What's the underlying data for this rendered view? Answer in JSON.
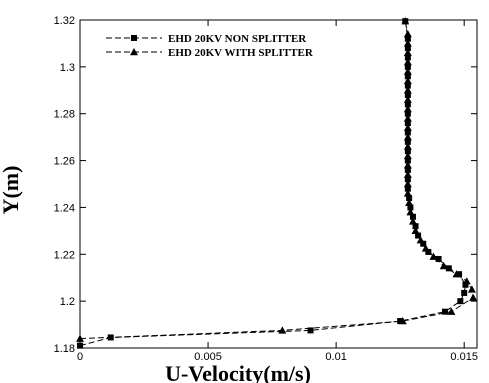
{
  "chart_data": {
    "type": "line",
    "title": "",
    "xlabel": "U-Velocity(m/s)",
    "ylabel": "Y(m)",
    "xlim": [
      0,
      0.0155
    ],
    "ylim": [
      1.18,
      1.32
    ],
    "xticks": [
      0,
      0.005,
      0.01,
      0.015
    ],
    "xtick_labels": [
      "0",
      "0.005",
      "0.01",
      "0.015"
    ],
    "yticks": [
      1.18,
      1.2,
      1.22,
      1.24,
      1.26,
      1.28,
      1.3,
      1.32
    ],
    "ytick_labels": [
      "1.18",
      "1.2",
      "1.22",
      "1.24",
      "1.26",
      "1.28",
      "1.3",
      "1.32"
    ],
    "grid": false,
    "legend_position": "top-left",
    "series": [
      {
        "name": "EHD 20KV NON SPLITTER",
        "marker": "square",
        "line_style": "dashed",
        "color": "#000000",
        "x": [
          0,
          0.0012,
          0.009,
          0.0125,
          0.01425,
          0.01485,
          0.015,
          0.01505,
          0.0148,
          0.0144,
          0.014,
          0.0136,
          0.0134,
          0.0132,
          0.0131,
          0.013,
          0.0129,
          0.01285,
          0.0128,
          0.0128,
          0.0128,
          0.0128,
          0.0128,
          0.0128,
          0.0128,
          0.0128,
          0.0128,
          0.0128,
          0.0128,
          0.0128,
          0.0128,
          0.0128,
          0.0128,
          0.0128,
          0.0128,
          0.0127
        ],
        "y": [
          1.181,
          1.1845,
          1.1875,
          1.1915,
          1.1955,
          1.2,
          1.2035,
          1.207,
          1.2115,
          1.214,
          1.218,
          1.221,
          1.2245,
          1.228,
          1.232,
          1.236,
          1.24,
          1.244,
          1.248,
          1.252,
          1.256,
          1.26,
          1.264,
          1.268,
          1.272,
          1.276,
          1.28,
          1.284,
          1.288,
          1.292,
          1.296,
          1.3,
          1.304,
          1.308,
          1.312,
          1.3195
        ]
      },
      {
        "name": "EHD 20KV WITH SPLITTER",
        "marker": "triangle",
        "line_style": "dashed",
        "color": "#000000",
        "x": [
          0,
          0.0079,
          0.0126,
          0.0145,
          0.01535,
          0.0153,
          0.0151,
          0.0147,
          0.0142,
          0.0138,
          0.0135,
          0.0133,
          0.0131,
          0.013,
          0.0129,
          0.01285,
          0.0128,
          0.0128,
          0.0128,
          0.0128,
          0.0128,
          0.0128,
          0.0128,
          0.0128,
          0.0128,
          0.0128,
          0.0128,
          0.0128,
          0.0128,
          0.0128,
          0.0128,
          0.0128,
          0.0128,
          0.0128,
          0.0127
        ],
        "y": [
          1.184,
          1.1875,
          1.1915,
          1.1955,
          1.2015,
          1.205,
          1.2085,
          1.2115,
          1.215,
          1.219,
          1.2225,
          1.226,
          1.23,
          1.234,
          1.238,
          1.242,
          1.246,
          1.25,
          1.254,
          1.258,
          1.262,
          1.266,
          1.27,
          1.274,
          1.278,
          1.282,
          1.286,
          1.29,
          1.294,
          1.298,
          1.302,
          1.306,
          1.31,
          1.314,
          1.3195
        ]
      }
    ]
  }
}
